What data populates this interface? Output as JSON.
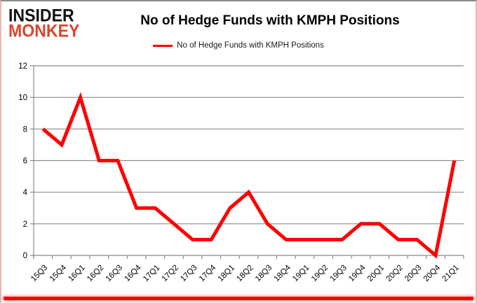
{
  "logo": {
    "line1": "INSIDER",
    "line2": "MONKEY"
  },
  "header": {
    "title": "No of Hedge Funds with KMPH Positions"
  },
  "legend": {
    "label": "No of Hedge Funds with KMPH Positions"
  },
  "colors": {
    "series_red": "#fe0000",
    "grid_gray": "#8a8a8a",
    "axis_text": "#000000",
    "logo_red": "#d9442e",
    "accent_bar_red": "#fe0000"
  },
  "chart_data": {
    "type": "line",
    "title": "No of Hedge Funds with KMPH Positions",
    "xlabel": "",
    "ylabel": "",
    "categories": [
      "15Q3",
      "15Q4",
      "16Q1",
      "16Q2",
      "16Q3",
      "16Q4",
      "17Q1",
      "17Q2",
      "17Q3",
      "17Q4",
      "18Q1",
      "18Q2",
      "18Q3",
      "18Q4",
      "19Q1",
      "19Q2",
      "19Q3",
      "19Q4",
      "20Q1",
      "20Q2",
      "20Q3",
      "20Q4",
      "21Q1"
    ],
    "series": [
      {
        "name": "No of Hedge Funds with KMPH Positions",
        "color": "#fe0000",
        "values": [
          8,
          7,
          10,
          6,
          6,
          3,
          3,
          2,
          1,
          1,
          3,
          4,
          2,
          1,
          1,
          1,
          1,
          2,
          2,
          1,
          1,
          0,
          6
        ]
      }
    ],
    "ylim": [
      0,
      12
    ],
    "ytick_interval": 2,
    "ytick_labels": [
      "0",
      "2",
      "4",
      "6",
      "8",
      "10",
      "12"
    ],
    "grid": "horizontal",
    "legend_position": "top-center",
    "x_label_rotation_deg": -45
  }
}
